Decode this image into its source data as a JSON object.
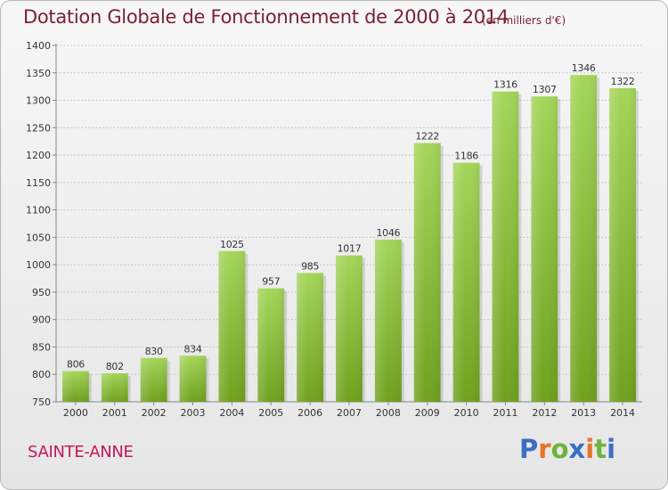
{
  "header": {
    "title": "Dotation Globale de Fonctionnement de 2000 à 2014",
    "unit_note": "(en milliers d'€)"
  },
  "footer": {
    "commune": "SAINTE-ANNE",
    "logo_text": "Proxiti"
  },
  "colors": {
    "title": "#7a1f34",
    "commune": "#c2185b",
    "bar_top": "#a4d65a",
    "bar_bottom": "#6fa11e",
    "logo": [
      "#3b6fc4",
      "#e8732a",
      "#6fb33a",
      "#3b6fc4",
      "#e8732a",
      "#6fb33a",
      "#3b6fc4"
    ]
  },
  "chart_data": {
    "type": "bar",
    "title": "Dotation Globale de Fonctionnement de 2000 à 2014",
    "xlabel": "",
    "ylabel": "(en milliers d'€)",
    "categories": [
      "2000",
      "2001",
      "2002",
      "2003",
      "2004",
      "2005",
      "2006",
      "2007",
      "2008",
      "2009",
      "2010",
      "2011",
      "2012",
      "2013",
      "2014"
    ],
    "values": [
      806,
      802,
      830,
      834,
      1025,
      957,
      985,
      1017,
      1046,
      1222,
      1186,
      1316,
      1307,
      1346,
      1322
    ],
    "ylim": [
      750,
      1400
    ],
    "yticks": [
      750,
      800,
      850,
      900,
      950,
      1000,
      1050,
      1100,
      1150,
      1200,
      1250,
      1300,
      1350,
      1400
    ],
    "grid": true,
    "data_labels": true
  }
}
